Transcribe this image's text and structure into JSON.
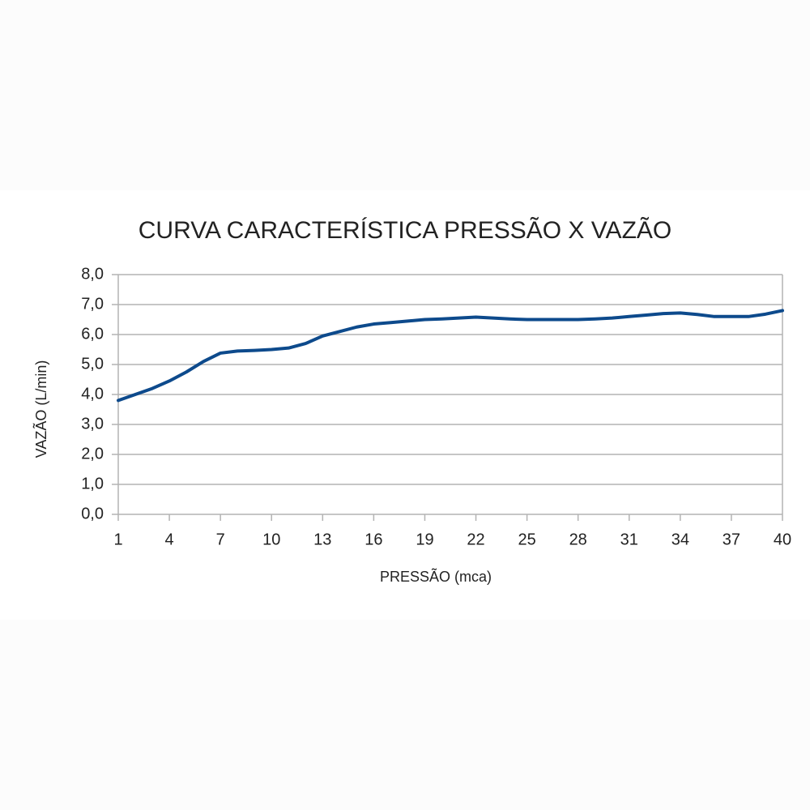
{
  "chart_data": {
    "type": "line",
    "title": "CURVA CARACTERÍSTICA PRESSÃO X VAZÃO",
    "x_label": "PRESSÃO (mca)",
    "y_label": "VAZÃO (L/min)",
    "x": [
      1,
      2,
      3,
      4,
      5,
      6,
      7,
      8,
      9,
      10,
      11,
      12,
      13,
      14,
      15,
      16,
      17,
      18,
      19,
      20,
      21,
      22,
      23,
      24,
      25,
      26,
      27,
      28,
      29,
      30,
      31,
      32,
      33,
      34,
      35,
      36,
      37,
      38,
      39,
      40
    ],
    "series": [
      {
        "name": "VAZÃO",
        "color": "#0d4a8c",
        "values": [
          3.8,
          4.0,
          4.2,
          4.45,
          4.75,
          5.1,
          5.38,
          5.45,
          5.47,
          5.5,
          5.55,
          5.7,
          5.95,
          6.1,
          6.25,
          6.35,
          6.4,
          6.45,
          6.5,
          6.52,
          6.55,
          6.58,
          6.55,
          6.52,
          6.5,
          6.5,
          6.5,
          6.5,
          6.52,
          6.55,
          6.6,
          6.65,
          6.7,
          6.72,
          6.67,
          6.6,
          6.6,
          6.6,
          6.68,
          6.8
        ]
      }
    ],
    "xlim": [
      1,
      40
    ],
    "xticks": [
      1,
      4,
      7,
      10,
      13,
      16,
      19,
      22,
      25,
      28,
      31,
      34,
      37,
      40
    ],
    "ylim": [
      0,
      8
    ],
    "yticks": [
      {
        "value": 0,
        "label": "0,0"
      },
      {
        "value": 1,
        "label": "1,0"
      },
      {
        "value": 2,
        "label": "2,0"
      },
      {
        "value": 3,
        "label": "3,0"
      },
      {
        "value": 4,
        "label": "4,0"
      },
      {
        "value": 5,
        "label": "5,0"
      },
      {
        "value": 6,
        "label": "6,0"
      },
      {
        "value": 7,
        "label": "7,0"
      },
      {
        "value": 8,
        "label": "8,0"
      }
    ],
    "grid": true
  }
}
